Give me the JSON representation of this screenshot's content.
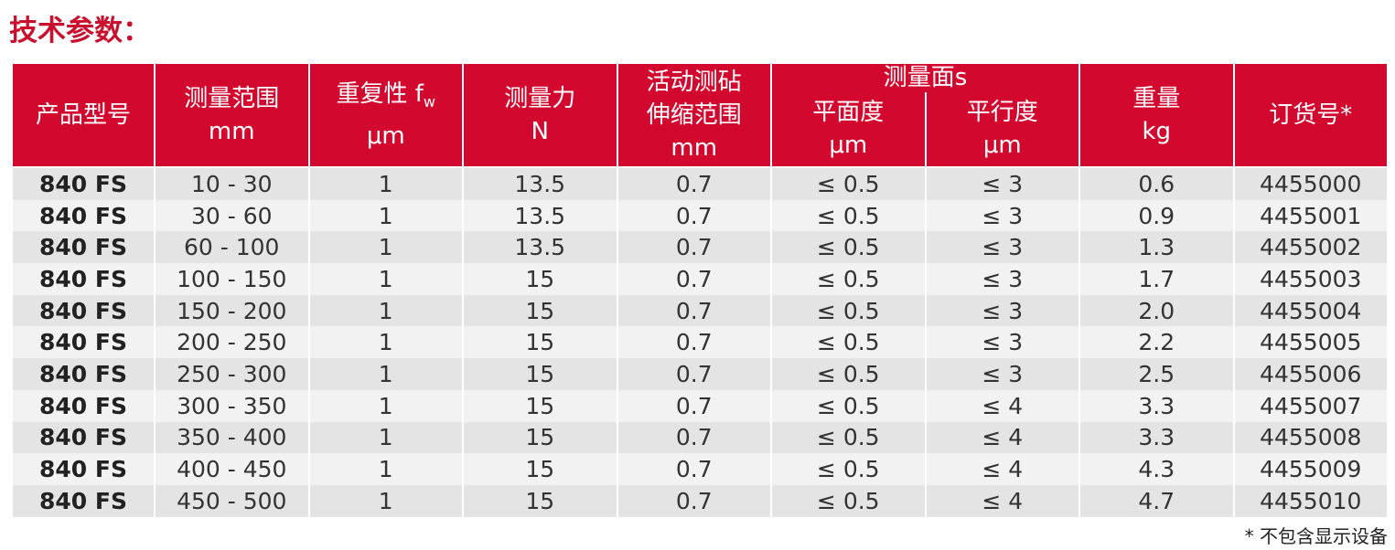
{
  "title": "技术参数：",
  "table": {
    "header": [
      {
        "lines": [
          "产品型号"
        ]
      },
      {
        "lines": [
          "测量范围",
          "mm"
        ]
      },
      {
        "lines": [
          "重复性 f",
          "μm"
        ],
        "sub": "w"
      },
      {
        "lines": [
          "测量力",
          "N"
        ]
      },
      {
        "lines": [
          "活动测砧",
          "伸缩范围",
          "mm"
        ]
      },
      {
        "group": "测量面s",
        "sub_cells": [
          {
            "lines": [
              "平面度",
              "μm"
            ]
          },
          {
            "lines": [
              "平行度",
              "μm"
            ]
          }
        ]
      },
      {
        "lines": [
          "重量",
          "kg"
        ]
      },
      {
        "lines": [
          "订货号*"
        ]
      }
    ],
    "rows": [
      [
        "840 FS",
        "10 - 30",
        "1",
        "13.5",
        "0.7",
        "≤ 0.5",
        "≤ 3",
        "0.6",
        "4455000"
      ],
      [
        "840 FS",
        "30 - 60",
        "1",
        "13.5",
        "0.7",
        "≤ 0.5",
        "≤ 3",
        "0.9",
        "4455001"
      ],
      [
        "840 FS",
        "60 - 100",
        "1",
        "13.5",
        "0.7",
        "≤ 0.5",
        "≤ 3",
        "1.3",
        "4455002"
      ],
      [
        "840 FS",
        "100 - 150",
        "1",
        "15",
        "0.7",
        "≤ 0.5",
        "≤ 3",
        "1.7",
        "4455003"
      ],
      [
        "840 FS",
        "150 - 200",
        "1",
        "15",
        "0.7",
        "≤ 0.5",
        "≤ 3",
        "2.0",
        "4455004"
      ],
      [
        "840 FS",
        "200 - 250",
        "1",
        "15",
        "0.7",
        "≤ 0.5",
        "≤ 3",
        "2.2",
        "4455005"
      ],
      [
        "840 FS",
        "250 - 300",
        "1",
        "15",
        "0.7",
        "≤ 0.5",
        "≤ 3",
        "2.5",
        "4455006"
      ],
      [
        "840 FS",
        "300 - 350",
        "1",
        "15",
        "0.7",
        "≤ 0.5",
        "≤ 4",
        "3.3",
        "4455007"
      ],
      [
        "840 FS",
        "350 - 400",
        "1",
        "15",
        "0.7",
        "≤ 0.5",
        "≤ 4",
        "3.3",
        "4455008"
      ],
      [
        "840 FS",
        "400 - 450",
        "1",
        "15",
        "0.7",
        "≤ 0.5",
        "≤ 4",
        "4.3",
        "4455009"
      ],
      [
        "840 FS",
        "450 - 500",
        "1",
        "15",
        "0.7",
        "≤ 0.5",
        "≤ 4",
        "4.7",
        "4455010"
      ]
    ]
  },
  "footnote": "* 不包含显示设备"
}
